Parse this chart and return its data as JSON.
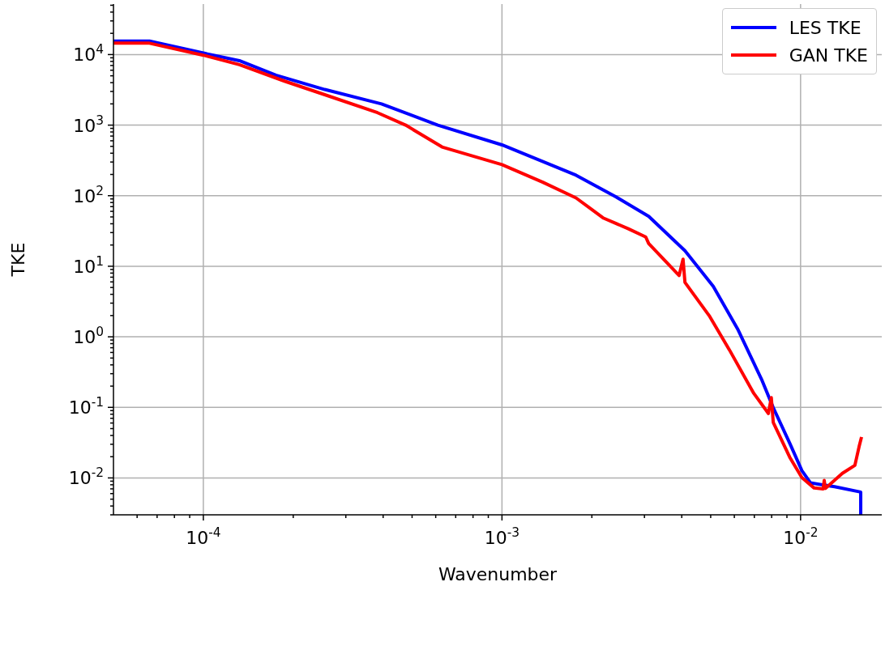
{
  "chart_data": {
    "type": "line",
    "xlabel": "Wavenumber",
    "ylabel": "TKE",
    "log": "xy",
    "grid": true,
    "legend": "top right",
    "marker": "none",
    "line_style": "solid",
    "xlim": [
      5e-05,
      0.0187
    ],
    "ylim": [
      0.003,
      52000
    ],
    "xticks": [
      {
        "value": 6e-05,
        "label": null
      },
      {
        "value": 7e-05,
        "label": null
      },
      {
        "value": 8e-05,
        "label": null
      },
      {
        "value": 9e-05,
        "label": null
      },
      {
        "value": 0.0001,
        "label": "10$^{-4}$"
      },
      {
        "value": 0.0002,
        "label": null
      },
      {
        "value": 0.0003,
        "label": null
      },
      {
        "value": 0.0004,
        "label": null
      },
      {
        "value": 0.0005,
        "label": null
      },
      {
        "value": 0.0006,
        "label": null
      },
      {
        "value": 0.0007,
        "label": null
      },
      {
        "value": 0.0008,
        "label": null
      },
      {
        "value": 0.0009,
        "label": null
      },
      {
        "value": 0.001,
        "label": "10$^{-3}$"
      },
      {
        "value": 0.002,
        "label": null
      },
      {
        "value": 0.003,
        "label": null
      },
      {
        "value": 0.004,
        "label": null
      },
      {
        "value": 0.005,
        "label": null
      },
      {
        "value": 0.006,
        "label": null
      },
      {
        "value": 0.007,
        "label": null
      },
      {
        "value": 0.008,
        "label": null
      },
      {
        "value": 0.009,
        "label": null
      },
      {
        "value": 0.01,
        "label": "10$^{-2}$"
      }
    ],
    "yticks": [
      {
        "value": 0.003,
        "label": null
      },
      {
        "value": 0.004,
        "label": null
      },
      {
        "value": 0.005,
        "label": null
      },
      {
        "value": 0.006,
        "label": null
      },
      {
        "value": 0.007,
        "label": null
      },
      {
        "value": 0.008,
        "label": null
      },
      {
        "value": 0.009,
        "label": null
      },
      {
        "value": 0.01,
        "label": "10$^{-2}$"
      },
      {
        "value": 0.02,
        "label": null
      },
      {
        "value": 0.03,
        "label": null
      },
      {
        "value": 0.04,
        "label": null
      },
      {
        "value": 0.05,
        "label": null
      },
      {
        "value": 0.06,
        "label": null
      },
      {
        "value": 0.07,
        "label": null
      },
      {
        "value": 0.08,
        "label": null
      },
      {
        "value": 0.09,
        "label": null
      },
      {
        "value": 0.1,
        "label": "10$^{-1}$"
      },
      {
        "value": 0.2,
        "label": null
      },
      {
        "value": 0.3,
        "label": null
      },
      {
        "value": 0.4,
        "label": null
      },
      {
        "value": 0.5,
        "label": null
      },
      {
        "value": 0.6,
        "label": null
      },
      {
        "value": 0.7,
        "label": null
      },
      {
        "value": 0.8,
        "label": null
      },
      {
        "value": 0.9,
        "label": null
      },
      {
        "value": 1,
        "label": "10$^{0}$"
      },
      {
        "value": 2,
        "label": null
      },
      {
        "value": 3,
        "label": null
      },
      {
        "value": 4,
        "label": null
      },
      {
        "value": 5,
        "label": null
      },
      {
        "value": 6,
        "label": null
      },
      {
        "value": 7,
        "label": null
      },
      {
        "value": 8,
        "label": null
      },
      {
        "value": 9,
        "label": null
      },
      {
        "value": 10,
        "label": "10$^{1}$"
      },
      {
        "value": 20,
        "label": null
      },
      {
        "value": 30,
        "label": null
      },
      {
        "value": 40,
        "label": null
      },
      {
        "value": 50,
        "label": null
      },
      {
        "value": 60,
        "label": null
      },
      {
        "value": 70,
        "label": null
      },
      {
        "value": 80,
        "label": null
      },
      {
        "value": 90,
        "label": null
      },
      {
        "value": 100,
        "label": "10$^{2}$"
      },
      {
        "value": 200,
        "label": null
      },
      {
        "value": 300,
        "label": null
      },
      {
        "value": 400,
        "label": null
      },
      {
        "value": 500,
        "label": null
      },
      {
        "value": 600,
        "label": null
      },
      {
        "value": 700,
        "label": null
      },
      {
        "value": 800,
        "label": null
      },
      {
        "value": 900,
        "label": null
      },
      {
        "value": 1000,
        "label": "10$^{3}$"
      },
      {
        "value": 2000,
        "label": null
      },
      {
        "value": 3000,
        "label": null
      },
      {
        "value": 4000,
        "label": null
      },
      {
        "value": 5000,
        "label": null
      },
      {
        "value": 6000,
        "label": null
      },
      {
        "value": 7000,
        "label": null
      },
      {
        "value": 8000,
        "label": null
      },
      {
        "value": 9000,
        "label": null
      },
      {
        "value": 10000,
        "label": "10$^{4}$"
      },
      {
        "value": 20000,
        "label": null
      },
      {
        "value": 30000,
        "label": null
      },
      {
        "value": 40000,
        "label": null
      },
      {
        "value": 50000,
        "label": null
      }
    ],
    "series": [
      {
        "name": "LES TKE",
        "color": "#0000ff",
        "x": [
          5e-05,
          6.6e-05,
          0.0001,
          0.000132,
          0.000175,
          0.000255,
          0.000395,
          0.00061,
          0.001,
          0.00177,
          0.00241,
          0.0031,
          0.0041,
          0.0051,
          0.00615,
          0.0074,
          0.0081,
          0.0092,
          0.0101,
          0.0108,
          0.013,
          0.0159,
          0.0159
        ],
        "values": [
          15500,
          15500,
          10500,
          8200,
          5100,
          3200,
          2000,
          1000,
          525,
          195,
          96,
          51,
          16.6,
          5.2,
          1.3,
          0.25,
          0.099,
          0.031,
          0.0127,
          0.0085,
          0.0075,
          0.0063,
          0.003
        ]
      },
      {
        "name": "GAN TKE",
        "color": "#ff0000",
        "x": [
          5e-05,
          6.6e-05,
          0.0001,
          0.000132,
          0.000187,
          0.000255,
          0.000383,
          0.000476,
          0.00063,
          0.001,
          0.00137,
          0.00177,
          0.00219,
          0.00265,
          0.00303,
          0.0031,
          0.00392,
          0.00404,
          0.0041,
          0.00494,
          0.00578,
          0.00697,
          0.0078,
          0.00798,
          0.0081,
          0.0092,
          0.0101,
          0.0111,
          0.0119,
          0.012,
          0.0121,
          0.0138,
          0.0152,
          0.0157,
          0.016
        ],
        "values": [
          14500,
          14500,
          9800,
          7200,
          4200,
          2700,
          1500,
          1000,
          490,
          275,
          155,
          93,
          48,
          34,
          26,
          21,
          7.4,
          12.6,
          5.9,
          2.0,
          0.65,
          0.158,
          0.082,
          0.137,
          0.061,
          0.0196,
          0.0101,
          0.0072,
          0.007,
          0.0092,
          0.0071,
          0.0116,
          0.0151,
          0.0277,
          0.038
        ]
      }
    ]
  }
}
